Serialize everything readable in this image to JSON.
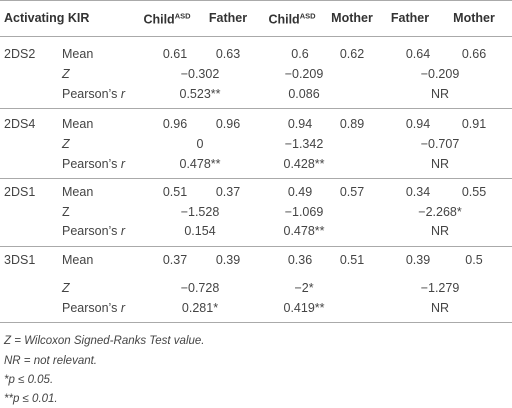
{
  "header": {
    "first": "Activating KIR",
    "pairs": [
      {
        "left": "Child",
        "left_sup": "ASD",
        "right": "Father"
      },
      {
        "left": "Child",
        "left_sup": "ASD",
        "right": "Mother"
      },
      {
        "left": "Father",
        "right": "Mother"
      }
    ]
  },
  "groups": [
    {
      "name": "2DS2",
      "rows": [
        {
          "label": "Mean",
          "values": [
            "0.61",
            "0.63",
            "0.6",
            "0.62",
            "0.64",
            "0.66"
          ]
        },
        {
          "label": "Z",
          "italic": true,
          "merged": [
            "−0.302",
            "−0.209",
            "−0.209"
          ]
        },
        {
          "label": "Pearson’s",
          "label_em": "r",
          "merged": [
            "0.523**",
            "0.086",
            "NR"
          ]
        }
      ]
    },
    {
      "name": "2DS4",
      "rows": [
        {
          "label": "Mean",
          "values": [
            "0.96",
            "0.96",
            "0.94",
            "0.89",
            "0.94",
            "0.91"
          ]
        },
        {
          "label": "Z",
          "italic": true,
          "merged": [
            "0",
            "−1.342",
            "−0.707"
          ]
        },
        {
          "label": "Pearson’s",
          "label_em": "r",
          "merged": [
            "0.478**",
            "0.428**",
            "NR"
          ]
        }
      ]
    },
    {
      "name": "2DS1",
      "rows": [
        {
          "label": "Mean",
          "values": [
            "0.51",
            "0.37",
            "0.49",
            "0.57",
            "0.34",
            "0.55"
          ]
        },
        {
          "label": "Z",
          "merged": [
            "−1.528",
            "−1.069",
            "−2.268*"
          ]
        },
        {
          "label": "Pearson’s",
          "label_em": "r",
          "merged": [
            "0.154",
            "0.478**",
            "NR"
          ]
        }
      ]
    },
    {
      "name": "3DS1",
      "rows": [
        {
          "label": "Mean",
          "values": [
            "0.37",
            "0.39",
            "0.36",
            "0.51",
            "0.39",
            "0.5"
          ]
        },
        {
          "label": "Z",
          "italic": true,
          "merged": [
            "−0.728",
            "−2*",
            "−1.279"
          ]
        },
        {
          "label": "Pearson’s",
          "label_em": "r",
          "merged": [
            "0.281*",
            "0.419**",
            "NR"
          ]
        }
      ]
    }
  ],
  "footnotes": [
    "Z = Wilcoxon Signed-Ranks Test value.",
    "NR = not relevant.",
    "*p ≤ 0.05.",
    "**p ≤ 0.01."
  ]
}
